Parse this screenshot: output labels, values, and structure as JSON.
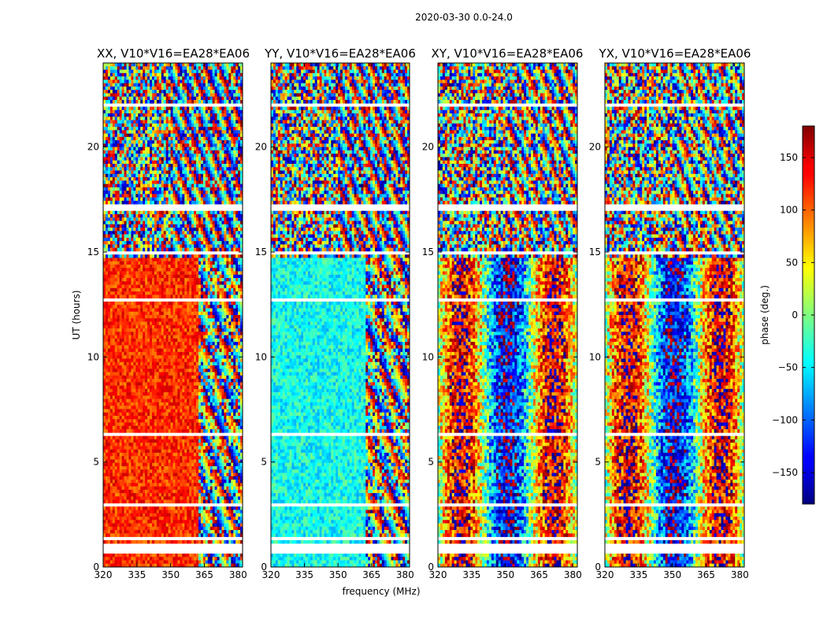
{
  "chart_data": {
    "type": "heatmap",
    "suptitle": "2020-03-30 0.0-24.0",
    "xlabel": "frequency (MHz)",
    "ylabel": "UT (hours)",
    "xlim": [
      320,
      382
    ],
    "ylim": [
      0,
      24
    ],
    "x_ticks": [
      320,
      335,
      350,
      365,
      380
    ],
    "y_ticks": [
      0,
      5,
      10,
      15,
      20
    ],
    "panels": [
      {
        "title": "XX, V10*V16=EA28*EA06",
        "pol": "XX",
        "base_phase_deg": 120
      },
      {
        "title": "YY, V10*V16=EA28*EA06",
        "pol": "YY",
        "base_phase_deg": -40
      },
      {
        "title": "XY, V10*V16=EA28*EA06",
        "pol": "XY",
        "base_phase_deg": 0
      },
      {
        "title": "YX, V10*V16=EA28*EA06",
        "pol": "YX",
        "base_phase_deg": 0
      }
    ],
    "blank_time_bands_hours": [
      [
        0.6,
        1.1
      ],
      [
        1.3,
        1.4
      ],
      [
        2.9,
        3.0
      ],
      [
        6.3,
        6.35
      ],
      [
        12.7,
        12.8
      ],
      [
        14.9,
        15.0
      ],
      [
        17.0,
        17.2
      ],
      [
        22.0,
        22.1
      ],
      [
        22.5,
        22.6
      ]
    ],
    "colorbar": {
      "label": "phase (deg.)",
      "range": [
        -180,
        180
      ],
      "ticks": [
        150,
        100,
        50,
        0,
        -50,
        -100,
        -150
      ],
      "tick_labels": [
        "150",
        "100",
        "50",
        "0",
        "−50",
        "−100",
        "−150"
      ],
      "colormap": "jet"
    }
  }
}
